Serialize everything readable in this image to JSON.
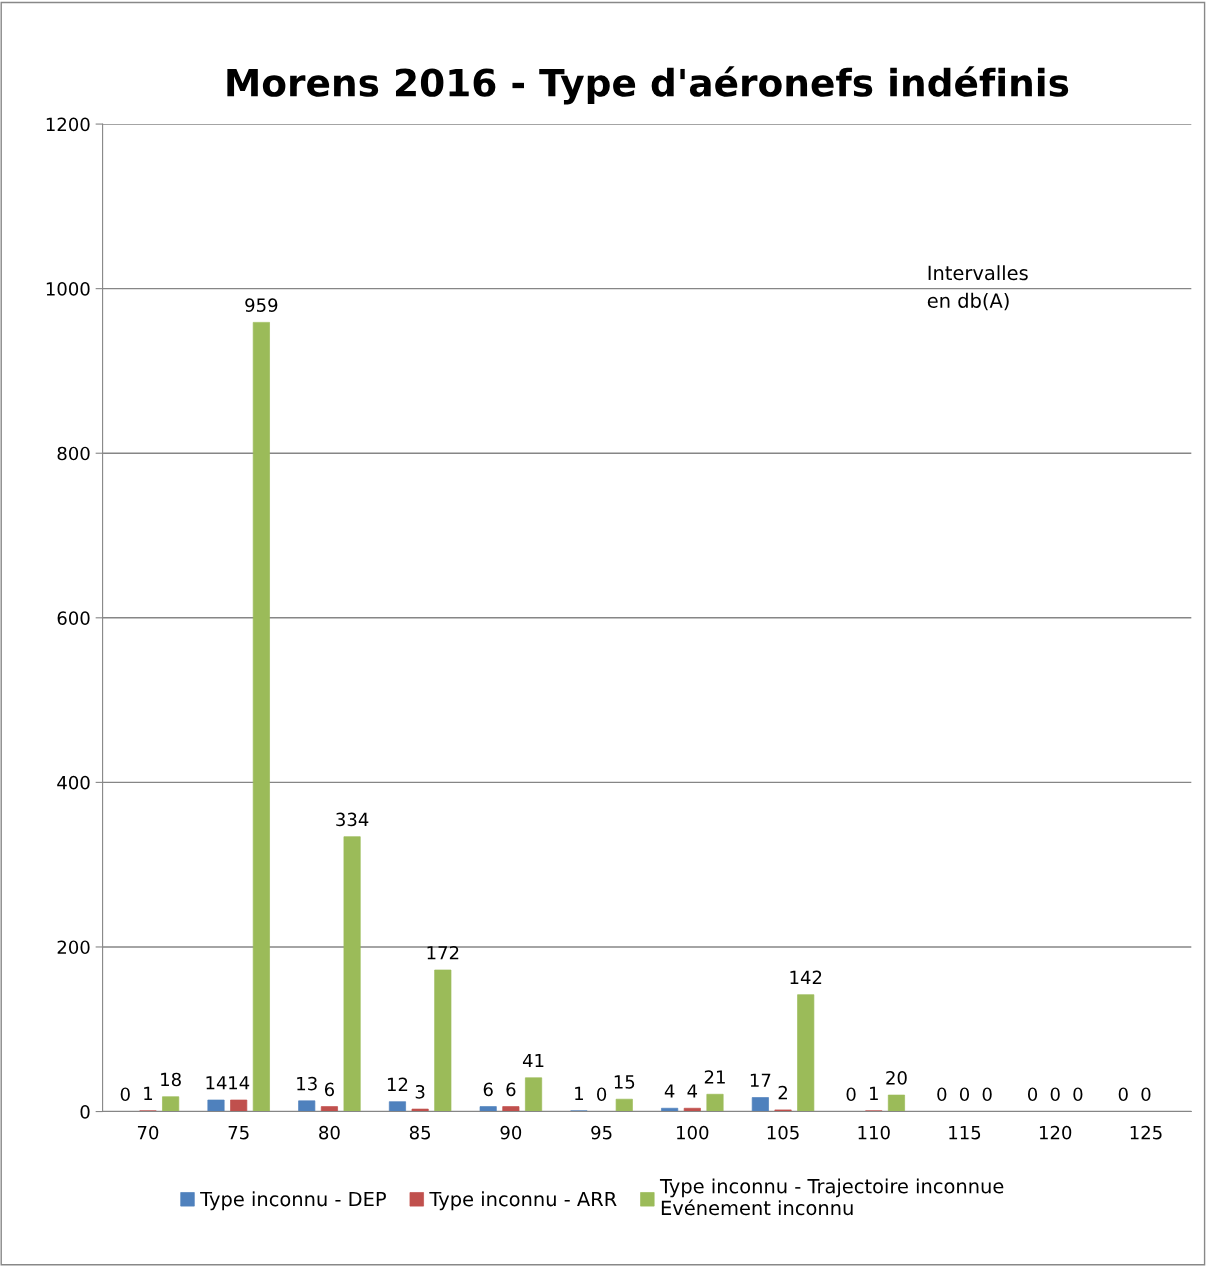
{
  "chart_data": {
    "type": "bar",
    "title": "Morens 2016 - Type d'aéronefs indéfinis",
    "categories": [
      "70",
      "75",
      "80",
      "85",
      "90",
      "95",
      "100",
      "105",
      "110",
      "115",
      "120",
      "125"
    ],
    "series": [
      {
        "name": "Type inconnu - DEP",
        "color": "#4f81bd",
        "values": [
          0,
          14,
          13,
          12,
          6,
          1,
          4,
          17,
          0,
          0,
          0,
          0
        ]
      },
      {
        "name": "Type inconnu - ARR",
        "color": "#c0504d",
        "values": [
          1,
          14,
          6,
          3,
          6,
          0,
          4,
          2,
          1,
          0,
          0,
          0
        ]
      },
      {
        "name": "Type inconnu - Trajectoire inconnue\nEvénement inconnu",
        "color": "#9bbb59",
        "values": [
          18,
          959,
          334,
          172,
          41,
          15,
          21,
          142,
          20,
          0,
          0,
          null
        ]
      }
    ],
    "ylim": [
      0,
      1200
    ],
    "yticks": [
      0,
      200,
      400,
      600,
      800,
      1000,
      1200
    ],
    "grid": "y",
    "legend": "bottom",
    "data_labels": true,
    "annotations": [
      "Intervalles\nen db(A)"
    ]
  }
}
